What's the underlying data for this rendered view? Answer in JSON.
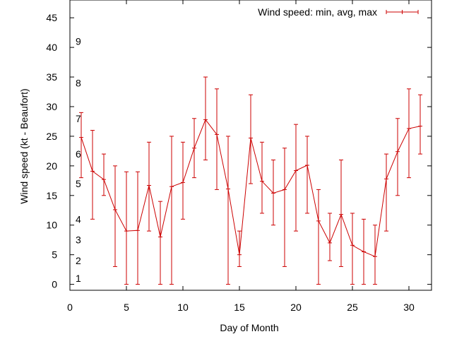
{
  "chart_data": {
    "type": "line",
    "title": "",
    "xlabel": "Day of Month",
    "ylabel": "Wind speed (kt - Beaufort)",
    "xlim": [
      0,
      32
    ],
    "ylim": [
      -1,
      48
    ],
    "x_ticks": [
      0,
      5,
      10,
      15,
      20,
      25,
      30
    ],
    "y_ticks": [
      0,
      5,
      10,
      15,
      20,
      25,
      30,
      35,
      40,
      45
    ],
    "x_tick_labels": [
      "0",
      "5",
      "10",
      "15",
      "20",
      "25",
      "30"
    ],
    "y_tick_labels": [
      "0",
      "5",
      "10",
      "15",
      "20",
      "25",
      "30",
      "35",
      "40",
      "45"
    ],
    "grid": false,
    "legend_position": "top-right",
    "series_color": "#cc0000",
    "series": [
      {
        "name": "Wind speed: min, avg, max",
        "x": [
          1,
          2,
          3,
          4,
          5,
          6,
          7,
          8,
          9,
          10,
          11,
          12,
          13,
          14,
          15,
          16,
          17,
          18,
          19,
          20,
          21,
          22,
          23,
          24,
          25,
          26,
          27,
          28,
          29,
          30,
          31
        ],
        "avg": [
          24.8,
          19.1,
          17.7,
          12.6,
          9.0,
          9.1,
          16.7,
          8.0,
          16.5,
          17.2,
          23.0,
          27.8,
          25.3,
          16.1,
          5.0,
          24.7,
          17.4,
          15.4,
          16.0,
          19.2,
          20.1,
          10.7,
          7.0,
          11.8,
          6.6,
          5.5,
          4.7,
          17.8,
          22.4,
          26.3,
          26.7
        ],
        "min": [
          18,
          11,
          15,
          3,
          0,
          0,
          9,
          0,
          0,
          11,
          18,
          21,
          16,
          0,
          3,
          17,
          12,
          10,
          3,
          9,
          12,
          0,
          4,
          3,
          0,
          0,
          0,
          9,
          15,
          18,
          22
        ],
        "max": [
          29,
          26,
          22,
          20,
          19,
          19,
          24,
          14,
          25,
          24,
          28,
          35,
          33,
          25,
          9,
          32,
          24,
          21,
          23,
          27,
          25,
          16,
          12,
          21,
          12,
          11,
          10,
          22,
          28,
          33,
          32
        ]
      }
    ],
    "beaufort_scale": {
      "labels": [
        "1",
        "2",
        "3",
        "4",
        "5",
        "6",
        "7",
        "8",
        "9"
      ],
      "y": [
        1,
        4,
        7.5,
        11,
        17,
        22,
        28,
        34,
        41
      ]
    }
  }
}
